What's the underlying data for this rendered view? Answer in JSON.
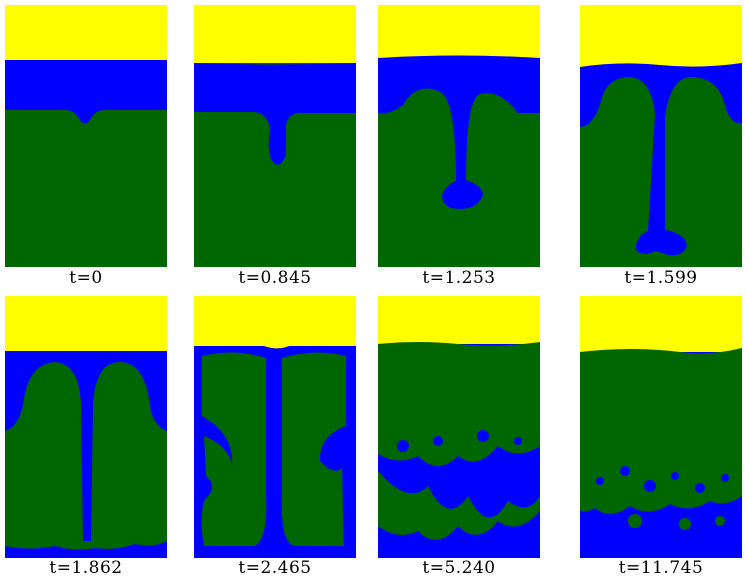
{
  "colors": {
    "top": "#ffff00",
    "middle": "#0000ff",
    "bottom": "#006600"
  },
  "frames": [
    {
      "label": "t=0"
    },
    {
      "label": "t=0.845"
    },
    {
      "label": "t=1.253"
    },
    {
      "label": "t=1.599"
    },
    {
      "label": "t=1.862"
    },
    {
      "label": "t=2.465"
    },
    {
      "label": "t=5.240"
    },
    {
      "label": "t=11.745"
    }
  ]
}
